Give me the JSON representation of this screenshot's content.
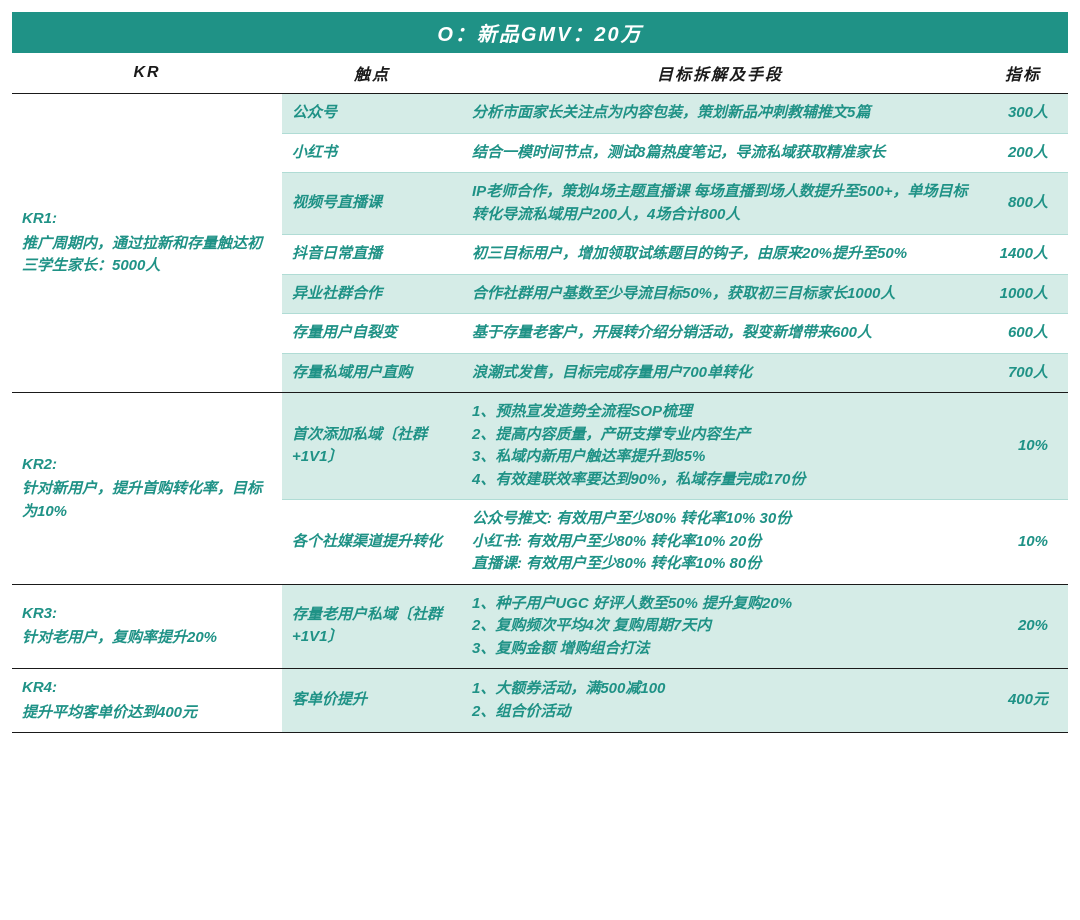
{
  "colors": {
    "header_bg": "#1f9286",
    "header_text": "#ffffff",
    "text": "#1f9286",
    "alt_row_bg": "#d5ece7",
    "row_border": "#b0dcd5",
    "section_border": "#1a1a1a"
  },
  "title": "O：新品GMV：20万",
  "columns": {
    "kr": "KR",
    "touch": "触点",
    "action": "目标拆解及手段",
    "metric": "指标"
  },
  "krs": [
    {
      "label_line1": "KR1:",
      "label_line2": "推广周期内，通过拉新和存量触达初三学生家长：5000人",
      "rows": [
        {
          "touch": "公众号",
          "action": "分析市面家长关注点为内容包装，策划新品冲刺教辅推文5篇",
          "metric": "300人"
        },
        {
          "touch": "小红书",
          "action": "结合一模时间节点，测试8篇热度笔记，导流私域获取精准家长",
          "metric": "200人"
        },
        {
          "touch": "视频号直播课",
          "action": "IP老师合作，策划4场主题直播课 每场直播到场人数提升至500+，单场目标转化导流私域用户200人，4场合计800人",
          "metric": "800人"
        },
        {
          "touch": "抖音日常直播",
          "action": "初三目标用户，增加领取试练题目的钩子，由原来20%提升至50%",
          "metric": "1400人"
        },
        {
          "touch": "异业社群合作",
          "action": "合作社群用户基数至少导流目标50%，获取初三目标家长1000人",
          "metric": "1000人"
        },
        {
          "touch": "存量用户自裂变",
          "action": "基于存量老客户，开展转介绍分销活动，裂变新增带来600人",
          "metric": "600人"
        },
        {
          "touch": "存量私域用户直购",
          "action": "浪潮式发售，目标完成存量用户700单转化",
          "metric": "700人"
        }
      ]
    },
    {
      "label_line1": "KR2:",
      "label_line2": "针对新用户，提升首购转化率，目标为10%",
      "rows": [
        {
          "touch": "首次添加私域〔社群+1V1〕",
          "action": "1、预热宣发造势全流程SOP梳理\n2、提高内容质量，产研支撑专业内容生产\n3、私域内新用户触达率提升到85%\n4、有效建联效率要达到90%，私域存量完成170份",
          "metric": "10%"
        },
        {
          "touch": "各个社媒渠道提升转化",
          "action": "公众号推文: 有效用户至少80% 转化率10% 30份\n小红书: 有效用户至少80% 转化率10% 20份\n直播课: 有效用户至少80% 转化率10% 80份",
          "metric": "10%"
        }
      ]
    },
    {
      "label_line1": "KR3:",
      "label_line2": "针对老用户，复购率提升20%",
      "rows": [
        {
          "touch": "存量老用户私域〔社群+1V1〕",
          "action": "1、种子用户UGC 好评人数至50% 提升复购20%\n2、复购频次平均4次 复购周期7天内\n3、复购金额 增购组合打法",
          "metric": "20%"
        }
      ]
    },
    {
      "label_line1": "KR4:",
      "label_line2": "提升平均客单价达到400元",
      "rows": [
        {
          "touch": "客单价提升",
          "action": "1、大额券活动，满500减100\n2、组合价活动",
          "metric": "400元"
        }
      ]
    }
  ]
}
